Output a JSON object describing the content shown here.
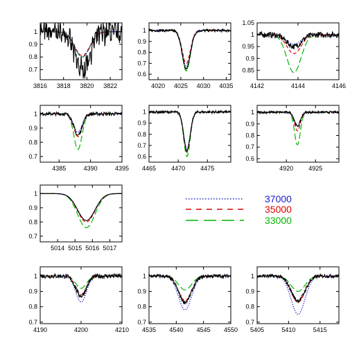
{
  "colors": {
    "observed": "#000000",
    "m37000": "#1a1acc",
    "m35000": "#e00000",
    "m33000": "#00b400"
  },
  "legend": [
    {
      "label": "37000",
      "color": "#1a1acc",
      "dash": "dotted"
    },
    {
      "label": "35000",
      "color": "#e00000",
      "dash": "short-dash"
    },
    {
      "label": "33000",
      "color": "#00b400",
      "dash": "long-dash"
    }
  ],
  "chart_data": [
    {
      "type": "line",
      "panel": "r0c0",
      "xlim": [
        3816,
        3823
      ],
      "ylim": [
        0.62,
        1.07
      ],
      "xticks": [
        "3816",
        "3818",
        "3820",
        "3822"
      ],
      "yticks": [
        "0.7",
        "0.8",
        "0.9",
        "1"
      ],
      "center": 3819.6,
      "width": 0.65,
      "noise": 0.06,
      "wiggle": 0.07,
      "series": [
        {
          "values": {
            "obs": 0.3,
            "m37000": 0.2,
            "m35000": 0.19,
            "m33000": 0.2
          }
        }
      ]
    },
    {
      "type": "line",
      "panel": "r0c1",
      "xlim": [
        4018,
        4036
      ],
      "ylim": [
        0.55,
        1.07
      ],
      "xticks": [
        "4020",
        "4025",
        "4030",
        "4035"
      ],
      "yticks": [
        "0.6",
        "0.7",
        "0.8",
        "0.9",
        "1"
      ],
      "center": 4026.2,
      "width": 0.9,
      "noise": 0.012,
      "wiggle": 0,
      "series": [
        {
          "values": {
            "obs": 0.35,
            "m37000": 0.33,
            "m35000": 0.3,
            "m33000": 0.37
          }
        }
      ]
    },
    {
      "type": "line",
      "panel": "r0c2",
      "xlim": [
        4142,
        4146
      ],
      "ylim": [
        0.81,
        1.05
      ],
      "xticks": [
        "4142",
        "4144",
        "4146"
      ],
      "yticks": [
        "0.85",
        "0.9",
        "0.95",
        "1",
        "1.05"
      ],
      "center": 4143.8,
      "width": 0.35,
      "noise": 0.012,
      "wiggle": 0,
      "series": [
        {
          "values": {
            "obs": 0.05,
            "m37000": 0.04,
            "m35000": 0.08,
            "m33000": 0.16
          }
        }
      ]
    },
    {
      "type": "line",
      "panel": "r1c0",
      "xlim": [
        4382,
        4395
      ],
      "ylim": [
        0.66,
        1.06
      ],
      "xticks": [
        "4385",
        "4390",
        "4395"
      ],
      "yticks": [
        "0.7",
        "0.8",
        "0.9",
        "1"
      ],
      "center": 4388.0,
      "width": 0.65,
      "noise": 0.012,
      "wiggle": 0,
      "series": [
        {
          "values": {
            "obs": 0.15,
            "m37000": 0.13,
            "m35000": 0.16,
            "m33000": 0.25
          }
        }
      ]
    },
    {
      "type": "line",
      "panel": "r1c1",
      "xlim": [
        4465,
        4479
      ],
      "ylim": [
        0.55,
        1.06
      ],
      "xticks": [
        "4465",
        "4470",
        "4475"
      ],
      "yticks": [
        "0.6",
        "0.7",
        "0.8",
        "0.9",
        "1"
      ],
      "center": 4471.5,
      "width": 0.55,
      "noise": 0.012,
      "wiggle": 0,
      "series": [
        {
          "values": {
            "obs": 0.35,
            "m37000": 0.33,
            "m35000": 0.35,
            "m33000": 0.4
          }
        }
      ]
    },
    {
      "type": "line",
      "panel": "r1c2",
      "xlim": [
        4915,
        4929
      ],
      "ylim": [
        0.57,
        1.06
      ],
      "xticks": [
        "4920",
        "4925"
      ],
      "yticks": [
        "0.6",
        "0.7",
        "0.8",
        "0.9",
        "1"
      ],
      "center": 4921.9,
      "width": 0.5,
      "noise": 0.01,
      "wiggle": 0,
      "series": [
        {
          "values": {
            "obs": 0.12,
            "m37000": 0.12,
            "m35000": 0.16,
            "m33000": 0.28
          }
        }
      ]
    },
    {
      "type": "line",
      "panel": "r2c0",
      "xlim": [
        5013,
        5017.7
      ],
      "ylim": [
        0.66,
        1.06
      ],
      "xticks": [
        "5014",
        "5015",
        "5016",
        "5017"
      ],
      "yticks": [
        "0.7",
        "0.8",
        "0.9",
        "1"
      ],
      "center": 5015.65,
      "width": 0.5,
      "noise": 0,
      "wiggle": 0,
      "series": [
        {
          "values": {
            "obs": 0.19,
            "m37000": 0.19,
            "m35000": 0.2,
            "m33000": 0.24
          }
        }
      ]
    },
    {
      "type": "line",
      "panel": "r3c0",
      "xlim": [
        4190,
        4210
      ],
      "ylim": [
        0.69,
        1.06
      ],
      "xticks": [
        "4190",
        "4200",
        "4210"
      ],
      "yticks": [
        "0.7",
        "0.8",
        "0.9",
        "1"
      ],
      "center": 4200.0,
      "width": 1.3,
      "noise": 0.015,
      "wiggle": 0,
      "series": [
        {
          "values": {
            "obs": 0.13,
            "m37000": 0.17,
            "m35000": 0.12,
            "m33000": 0.08
          }
        }
      ]
    },
    {
      "type": "line",
      "panel": "r3c1",
      "xlim": [
        4535,
        4550
      ],
      "ylim": [
        0.69,
        1.06
      ],
      "xticks": [
        "4535",
        "4540",
        "4545",
        "4550"
      ],
      "yticks": [
        "0.7",
        "0.8",
        "0.9",
        "1"
      ],
      "center": 4541.6,
      "width": 1.2,
      "noise": 0.012,
      "wiggle": 0,
      "series": [
        {
          "values": {
            "obs": 0.17,
            "m37000": 0.22,
            "m35000": 0.16,
            "m33000": 0.09
          }
        }
      ]
    },
    {
      "type": "line",
      "panel": "r3c2",
      "xlim": [
        5405,
        5418
      ],
      "ylim": [
        0.69,
        1.06
      ],
      "xticks": [
        "5405",
        "5410",
        "5415"
      ],
      "yticks": [
        "0.7",
        "0.8",
        "0.9",
        "1"
      ],
      "center": 5411.5,
      "width": 1.1,
      "noise": 0.012,
      "wiggle": 0,
      "series": [
        {
          "values": {
            "obs": 0.16,
            "m37000": 0.25,
            "m35000": 0.17,
            "m33000": 0.1
          }
        }
      ]
    }
  ]
}
